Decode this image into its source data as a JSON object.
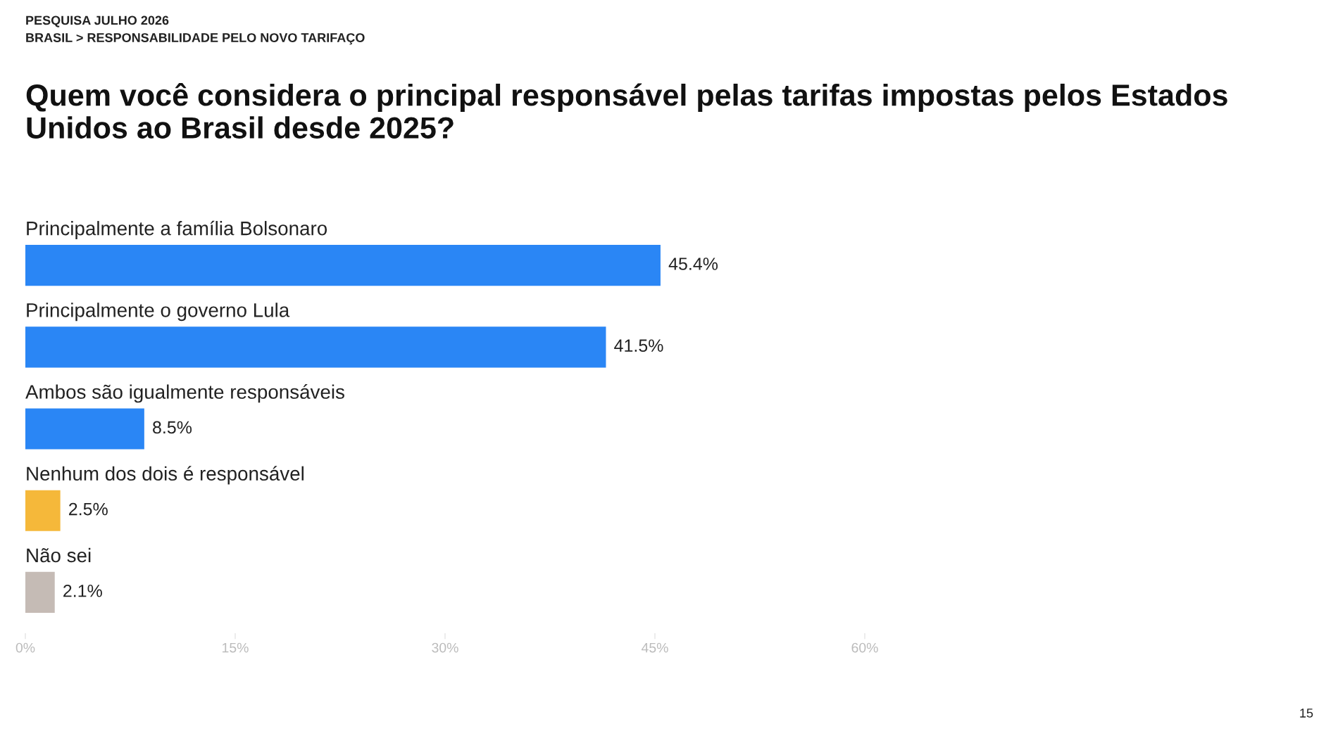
{
  "chart_data": {
    "type": "bar",
    "orientation": "horizontal",
    "title": "Quem você considera o principal responsável pelas tarifas impostas pelos Estados Unidos ao Brasil desde 2025?",
    "subtitle": "PESQUISA JULHO 2026\nBRASIL > RESPONSABILIDADE PELO NOVO TARIFAÇO",
    "categories": [
      "Principalmente a família Bolsonaro",
      "Principalmente o governo Lula",
      "Ambos são igualmente responsáveis",
      "Nenhum dos dois é responsável",
      "Não sei"
    ],
    "values": [
      45.4,
      41.5,
      8.5,
      2.5,
      2.1
    ],
    "colors": [
      "#2a86f5",
      "#2a86f5",
      "#2a86f5",
      "#f5b83a",
      "#c5bbb5"
    ],
    "value_labels": [
      "45.4%",
      "41.5%",
      "8.5%",
      "2.5%",
      "2.1%"
    ],
    "xlim": [
      0,
      60
    ],
    "xticks": [
      {
        "value": 0,
        "label": "0%"
      },
      {
        "value": 15,
        "label": "15%"
      },
      {
        "value": 30,
        "label": "30%"
      },
      {
        "value": 45,
        "label": "45%"
      },
      {
        "value": 60,
        "label": "60%"
      }
    ],
    "grid": false,
    "legend": false,
    "annotations": [
      "15"
    ]
  }
}
